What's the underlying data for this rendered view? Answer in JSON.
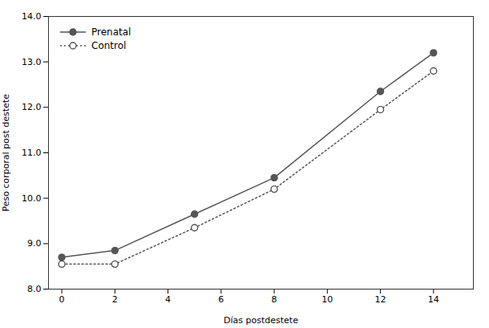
{
  "chart_data": {
    "type": "line",
    "x": [
      0,
      2,
      5,
      8,
      12,
      14
    ],
    "series": [
      {
        "name": "Prenatal",
        "color": "#555555",
        "values": [
          8.7,
          8.85,
          9.65,
          10.45,
          12.35,
          13.2
        ],
        "line_style": "solid",
        "marker": "filled"
      },
      {
        "name": "Control",
        "color": "#555555",
        "values": [
          8.55,
          8.55,
          9.35,
          10.2,
          11.95,
          12.8
        ],
        "line_style": "dotted",
        "marker": "open"
      }
    ],
    "xlabel": "Días postdestete",
    "ylabel": "Peso corporal post destete",
    "xlim": [
      -0.5,
      15.5
    ],
    "ylim": [
      8,
      14
    ],
    "xticks": [
      0,
      2,
      4,
      6,
      8,
      10,
      12,
      14
    ],
    "yticks": [
      8,
      9,
      10,
      11,
      12,
      13,
      14
    ],
    "grid": false,
    "legend": "upper left"
  }
}
